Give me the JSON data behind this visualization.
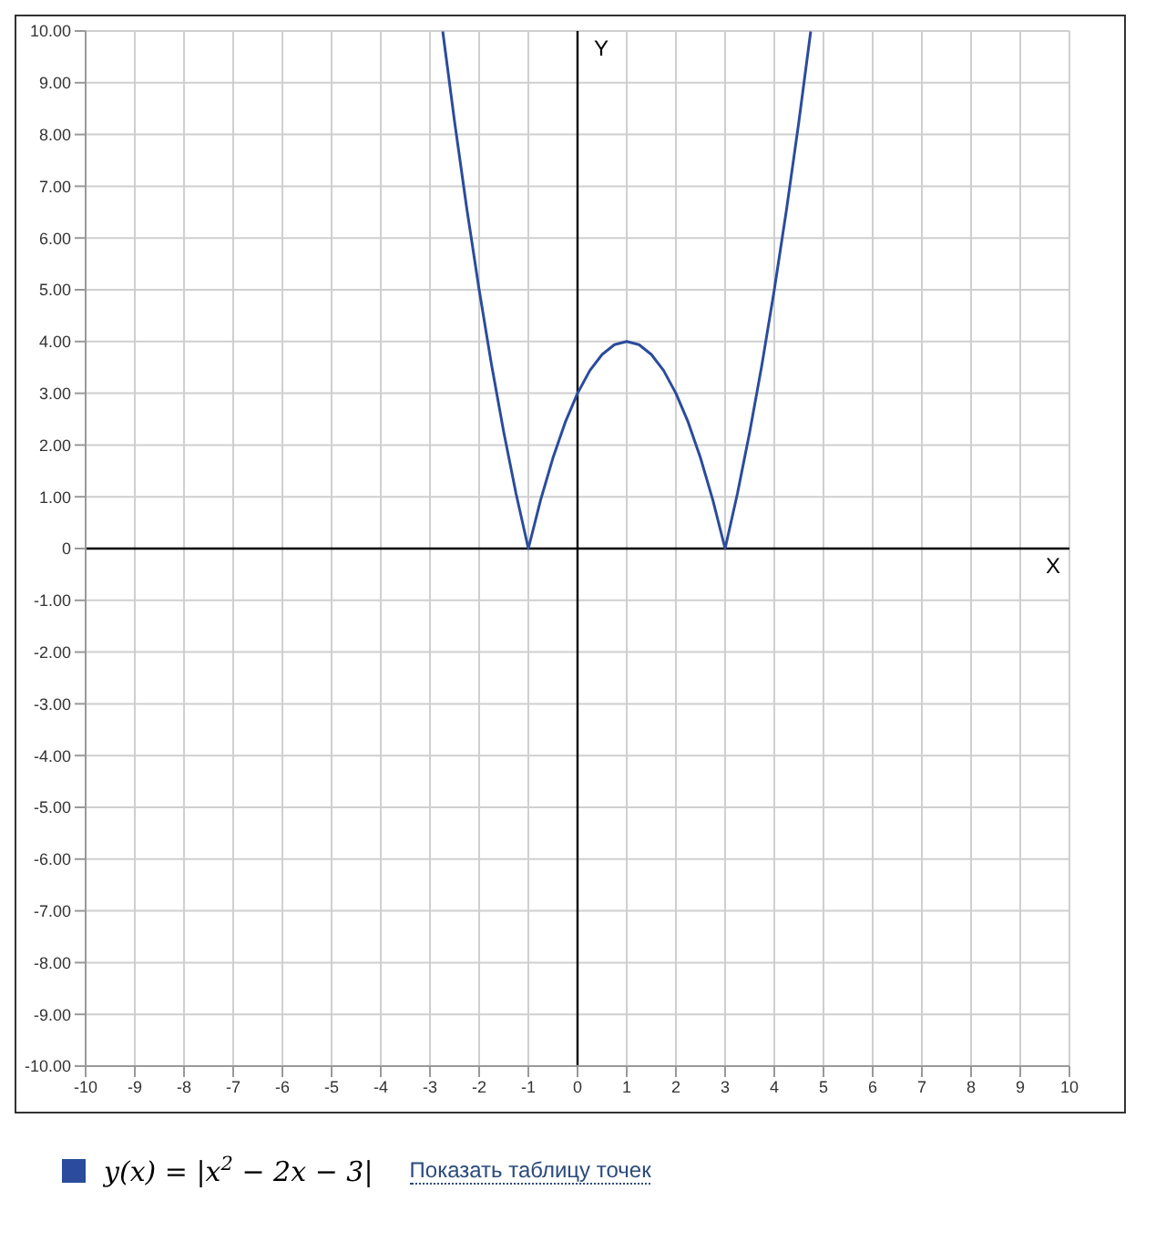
{
  "chart_data": {
    "type": "line",
    "xlabel": "X",
    "ylabel": "Y",
    "xlim": [
      -10,
      10
    ],
    "ylim": [
      -10,
      10
    ],
    "xticks": [
      -10,
      -9,
      -8,
      -7,
      -6,
      -5,
      -4,
      -3,
      -2,
      -1,
      0,
      1,
      2,
      3,
      4,
      5,
      6,
      7,
      8,
      9,
      10
    ],
    "yticks": [
      {
        "value": -10,
        "label": "-10.00"
      },
      {
        "value": -9,
        "label": "-9.00"
      },
      {
        "value": -8,
        "label": "-8.00"
      },
      {
        "value": -7,
        "label": "-7.00"
      },
      {
        "value": -6,
        "label": "-6.00"
      },
      {
        "value": -5,
        "label": "-5.00"
      },
      {
        "value": -4,
        "label": "-4.00"
      },
      {
        "value": -3,
        "label": "-3.00"
      },
      {
        "value": -2,
        "label": "-2.00"
      },
      {
        "value": -1,
        "label": "-1.00"
      },
      0,
      {
        "value": 1,
        "label": "1.00"
      },
      {
        "value": 2,
        "label": "2.00"
      },
      {
        "value": 3,
        "label": "3.00"
      },
      {
        "value": 4,
        "label": "4.00"
      },
      {
        "value": 5,
        "label": "5.00"
      },
      {
        "value": 6,
        "label": "6.00"
      },
      {
        "value": 7,
        "label": "7.00"
      },
      {
        "value": 8,
        "label": "8.00"
      },
      {
        "value": 9,
        "label": "9.00"
      },
      {
        "value": 10,
        "label": "10.00"
      }
    ],
    "grid": true,
    "legend": "bottom left",
    "marker": "none",
    "line_style": "solid",
    "series": [
      {
        "name": "y(x) = |x$^{2}$ − 2x − 3|",
        "color": "#2b4c9c",
        "x": [
          -2.74,
          -2.5,
          -2.25,
          -2,
          -1.75,
          -1.5,
          -1.25,
          -1,
          -0.75,
          -0.5,
          -0.25,
          0,
          0.25,
          0.5,
          0.75,
          1,
          1.25,
          1.5,
          1.75,
          2,
          2.25,
          2.5,
          2.75,
          3,
          3.25,
          3.5,
          3.75,
          4,
          4.25,
          4.5,
          4.74
        ],
        "values": [
          9.99,
          8.25,
          6.56,
          5,
          3.56,
          2.25,
          1.06,
          0,
          0.94,
          1.75,
          2.44,
          3,
          3.44,
          3.75,
          3.94,
          4,
          3.94,
          3.75,
          3.44,
          3,
          2.44,
          1.75,
          0.94,
          0,
          1.06,
          2.25,
          3.56,
          5,
          6.56,
          8.25,
          9.99
        ]
      }
    ],
    "annotations": [
      "Показать таблицу точек"
    ]
  }
}
